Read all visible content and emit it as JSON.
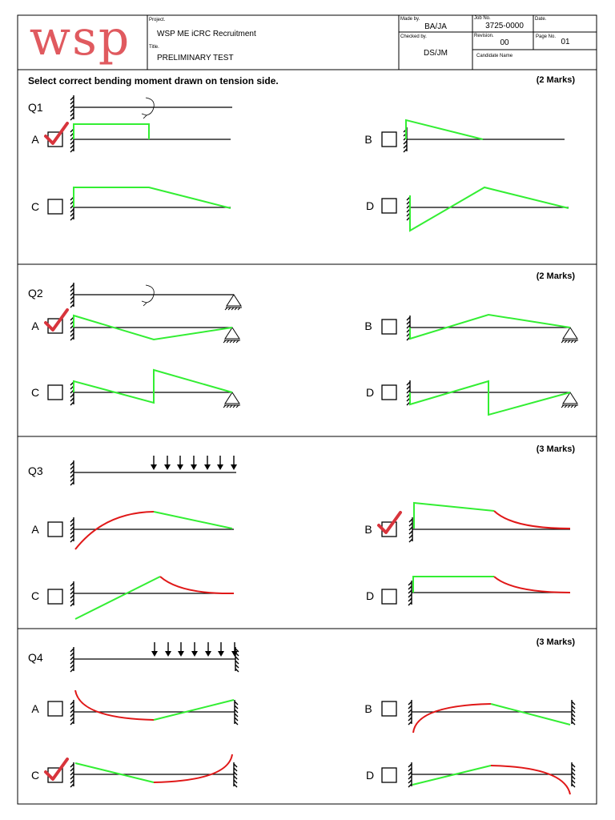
{
  "header": {
    "logo": "wsp",
    "project_label": "Project.",
    "project": "WSP ME iCRC Recruitment",
    "title_label": "Title.",
    "title": "PRELIMINARY TEST",
    "made_by_label": "Made by.",
    "made_by": "BA/JA",
    "checked_by_label": "Checked by.",
    "checked_by": "DS/JM",
    "job_no_label": "Job No.",
    "job_no": "3725-0000",
    "date_label": "Date.",
    "revision_label": "Revision.",
    "revision": "00",
    "page_no_label": "Page No.",
    "page_no": "01",
    "candidate_name_label": "Candidate Name"
  },
  "instruction": "Select correct bending moment drawn on tension side.",
  "questions": [
    {
      "label": "Q1",
      "marks": "(2 Marks)",
      "options": [
        "A",
        "B",
        "C",
        "D"
      ]
    },
    {
      "label": "Q2",
      "marks": "(2 Marks)",
      "options": [
        "A",
        "B",
        "C",
        "D"
      ]
    },
    {
      "label": "Q3",
      "marks": "(3 Marks)",
      "options": [
        "A",
        "B",
        "C",
        "D"
      ]
    },
    {
      "label": "Q4",
      "marks": "(3 Marks)",
      "options": [
        "A",
        "B",
        "C",
        "D"
      ]
    }
  ]
}
